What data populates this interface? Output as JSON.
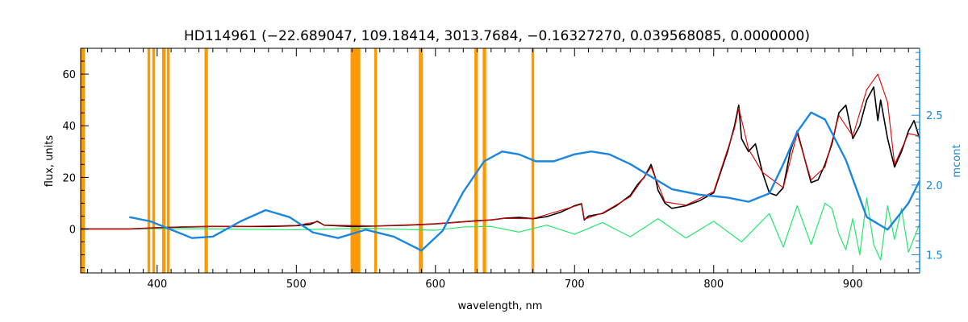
{
  "chart_data": {
    "type": "line",
    "title": "HD114961    (−22.689047, 109.18414, 3013.7684, −0.16327270, 0.039568085, 0.0000000)",
    "xlabel": "wavelength, nm",
    "ylabel": "flux, units",
    "y2label": "mcont",
    "xlim": [
      345,
      948
    ],
    "ylim": [
      -17,
      70
    ],
    "y2lim": [
      1.37,
      2.98
    ],
    "x_ticks": [
      400,
      500,
      600,
      700,
      800,
      900
    ],
    "y_ticks": [
      0,
      20,
      40,
      60
    ],
    "y2_ticks": [
      1.5,
      2.0,
      2.5
    ],
    "grid": false,
    "colors": {
      "observed": "#000000",
      "model": "#e00000",
      "residual": "#22e86a",
      "mcont": "#1a86e0",
      "masked": "#ff9900"
    },
    "masked_bands": [
      [
        345,
        348
      ],
      [
        393,
        395
      ],
      [
        396.5,
        398.5
      ],
      [
        403.5,
        406
      ],
      [
        407,
        409
      ],
      [
        434,
        436.5
      ],
      [
        539,
        546
      ],
      [
        556,
        558
      ],
      [
        588,
        591
      ],
      [
        628,
        630.5
      ],
      [
        634,
        636.5
      ],
      [
        669,
        671
      ]
    ],
    "series": [
      {
        "key": "observed",
        "axis": "left",
        "x": [
          345,
          360,
          380,
          400,
          420,
          440,
          460,
          480,
          500,
          510,
          515,
          520,
          540,
          560,
          580,
          600,
          615,
          630,
          640,
          650,
          660,
          670,
          680,
          690,
          700,
          705,
          707,
          710,
          720,
          730,
          740,
          745,
          750,
          755,
          758,
          760,
          765,
          770,
          780,
          790,
          800,
          805,
          810,
          815,
          818,
          820,
          825,
          830,
          835,
          840,
          845,
          850,
          855,
          860,
          865,
          870,
          875,
          880,
          885,
          890,
          895,
          900,
          905,
          910,
          915,
          918,
          920,
          925,
          930,
          935,
          940,
          944,
          948
        ],
        "y": [
          0,
          0,
          0,
          0.5,
          0.8,
          1.0,
          1.0,
          1.0,
          1.3,
          1.8,
          3.0,
          1.5,
          1.0,
          1.2,
          1.5,
          2.0,
          2.6,
          3.2,
          3.5,
          4.2,
          4.5,
          4.0,
          4.8,
          6.5,
          9.0,
          9.8,
          3.5,
          5.0,
          6.0,
          9.0,
          13.0,
          17.0,
          20.0,
          25.0,
          20.0,
          15.0,
          10.0,
          8.0,
          9.0,
          11.0,
          14.0,
          22.0,
          30.0,
          40.0,
          48.0,
          35.0,
          30.0,
          33.0,
          22.0,
          14.0,
          13.0,
          16.0,
          30.0,
          38.0,
          28.0,
          18.0,
          19.0,
          25.0,
          33.0,
          45.0,
          48.0,
          35.0,
          40.0,
          50.0,
          55.0,
          42.0,
          50.0,
          35.0,
          24.0,
          30.0,
          38.0,
          42.0,
          35.0
        ]
      },
      {
        "key": "model",
        "axis": "left",
        "x": [
          345,
          380,
          420,
          460,
          500,
          515,
          520,
          560,
          600,
          630,
          650,
          670,
          700,
          705,
          707,
          720,
          740,
          755,
          765,
          780,
          800,
          815,
          818,
          825,
          835,
          850,
          860,
          870,
          880,
          890,
          900,
          910,
          918,
          925,
          930,
          940,
          948
        ],
        "y": [
          0,
          0,
          0.9,
          1.0,
          1.4,
          2.8,
          1.5,
          1.2,
          2.0,
          3.1,
          4.1,
          4.0,
          8.8,
          9.6,
          3.8,
          6.2,
          12.5,
          24.0,
          10.5,
          9.2,
          14.5,
          39.0,
          47.0,
          31.0,
          22.0,
          16.0,
          37.0,
          19.0,
          24.0,
          44.0,
          36.0,
          54.0,
          60.0,
          49.0,
          25.0,
          37.0,
          36.0
        ]
      },
      {
        "key": "residual",
        "axis": "left",
        "x": [
          380,
          400,
          450,
          500,
          550,
          600,
          620,
          640,
          660,
          680,
          700,
          720,
          740,
          760,
          780,
          800,
          820,
          840,
          850,
          860,
          870,
          880,
          885,
          890,
          895,
          900,
          905,
          910,
          915,
          920,
          925,
          930,
          935,
          940,
          948
        ],
        "y": [
          0,
          0.2,
          0,
          -0.3,
          0.3,
          -0.5,
          0.8,
          1.0,
          -1.2,
          1.5,
          -2.0,
          2.5,
          -3.0,
          4.0,
          -3.5,
          3.0,
          -5.0,
          6.0,
          -7.0,
          9.0,
          -6.0,
          10.0,
          8.0,
          -2.0,
          -8.0,
          4.0,
          -10.0,
          12.0,
          -6.0,
          -12.0,
          9.0,
          -4.0,
          8.0,
          -9.0,
          2.0
        ]
      },
      {
        "key": "mcont",
        "axis": "right",
        "x": [
          380,
          395,
          410,
          425,
          440,
          460,
          478,
          495,
          512,
          530,
          550,
          570,
          590,
          605,
          620,
          635,
          648,
          660,
          672,
          685,
          700,
          712,
          725,
          740,
          755,
          770,
          790,
          810,
          825,
          840,
          850,
          860,
          870,
          880,
          895,
          910,
          925,
          940,
          948
        ],
        "y": [
          1.77,
          1.74,
          1.68,
          1.62,
          1.63,
          1.74,
          1.82,
          1.77,
          1.66,
          1.62,
          1.68,
          1.63,
          1.53,
          1.67,
          1.95,
          2.17,
          2.24,
          2.22,
          2.17,
          2.17,
          2.22,
          2.24,
          2.22,
          2.15,
          2.06,
          1.97,
          1.93,
          1.91,
          1.88,
          1.94,
          2.15,
          2.38,
          2.52,
          2.47,
          2.18,
          1.77,
          1.68,
          1.87,
          2.03
        ]
      }
    ]
  }
}
